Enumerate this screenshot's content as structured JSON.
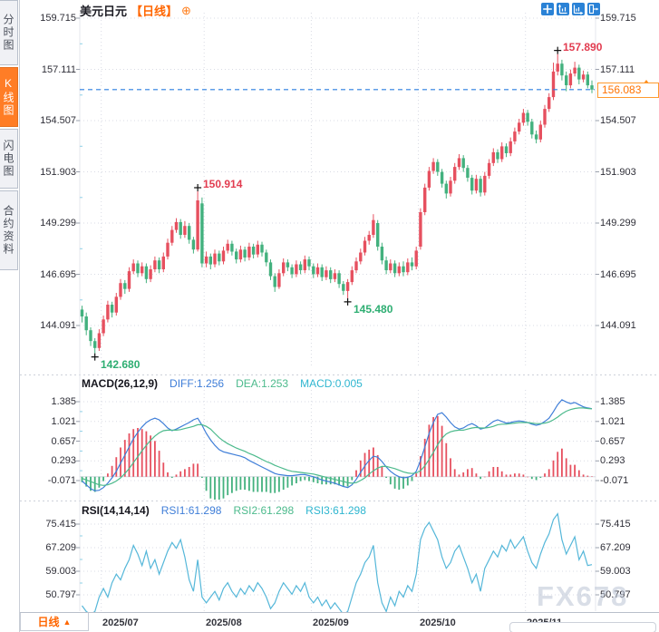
{
  "header": {
    "symbol": "美元日元",
    "period_tag": "【日线】",
    "plus_icon": "⊕"
  },
  "sidebar": {
    "tabs": [
      {
        "label": "分时图",
        "active": false
      },
      {
        "label": "K线图",
        "active": true
      },
      {
        "label": "闪电图",
        "active": false
      },
      {
        "label": "合约资料",
        "active": false
      }
    ]
  },
  "toolbar": {
    "buttons": [
      "move",
      "scale-vertical",
      "scale-horizontal",
      "exit"
    ]
  },
  "footer": {
    "period_label": "日线",
    "arrow": "▲"
  },
  "watermark": "FX678",
  "colors": {
    "up": "#e6505f",
    "down": "#43b17e",
    "diff_line": "#3f7ed8",
    "dea_line": "#4cba8c",
    "rsi_line": "#55b7d9",
    "dashed_price": "#2a7ee0",
    "accent_orange": "#ff6600",
    "toolbar_blue": "#2a82d6",
    "anno_red": "#e23c50",
    "anno_green": "#2eae72"
  },
  "chart_data": [
    {
      "type": "candlestick",
      "title": "美元日元【日线】",
      "y_ticks": [
        159.715,
        157.111,
        154.507,
        151.903,
        149.299,
        146.695,
        144.091
      ],
      "ylim": [
        142.0,
        160.0
      ],
      "current_price_label": "156.083",
      "current_price": 156.083,
      "months": [
        {
          "label": "2025/07",
          "idx": 5
        },
        {
          "label": "2025/08",
          "idx": 29
        },
        {
          "label": "2025/09",
          "idx": 54
        },
        {
          "label": "2025/10",
          "idx": 79
        },
        {
          "label": "2025/11",
          "idx": 104
        }
      ],
      "annotations": [
        {
          "text": "157.890",
          "value": 157.89,
          "idx": 111,
          "type": "high",
          "color": "#e23c50"
        },
        {
          "text": "150.914",
          "value": 150.914,
          "idx": 27,
          "type": "high",
          "color": "#e23c50"
        },
        {
          "text": "145.480",
          "value": 145.48,
          "idx": 62,
          "type": "low",
          "color": "#2eae72"
        },
        {
          "text": "142.680",
          "value": 142.68,
          "idx": 3,
          "type": "low",
          "color": "#2eae72"
        }
      ],
      "candles": [
        [
          144.9,
          145.1,
          144.25,
          144.55
        ],
        [
          144.55,
          144.75,
          143.6,
          143.85
        ],
        [
          143.85,
          144.0,
          143.05,
          143.3
        ],
        [
          143.3,
          143.45,
          142.68,
          142.95
        ],
        [
          142.95,
          143.9,
          142.8,
          143.7
        ],
        [
          143.7,
          144.6,
          143.55,
          144.4
        ],
        [
          144.4,
          145.35,
          144.25,
          145.15
        ],
        [
          145.15,
          145.3,
          144.5,
          144.75
        ],
        [
          144.75,
          145.75,
          144.6,
          145.55
        ],
        [
          145.55,
          146.45,
          145.4,
          146.25
        ],
        [
          146.25,
          146.4,
          145.7,
          145.95
        ],
        [
          145.95,
          147.05,
          145.8,
          146.85
        ],
        [
          146.85,
          147.45,
          146.7,
          147.25
        ],
        [
          147.25,
          147.4,
          146.55,
          146.75
        ],
        [
          146.75,
          147.3,
          146.6,
          147.1
        ],
        [
          147.1,
          147.25,
          146.25,
          146.45
        ],
        [
          146.45,
          147.15,
          146.3,
          146.95
        ],
        [
          146.95,
          147.6,
          146.8,
          147.4
        ],
        [
          147.4,
          147.55,
          146.75,
          146.95
        ],
        [
          146.95,
          147.8,
          146.8,
          147.6
        ],
        [
          147.6,
          148.5,
          147.45,
          148.3
        ],
        [
          148.3,
          149.15,
          148.15,
          148.95
        ],
        [
          148.95,
          149.55,
          148.8,
          149.35
        ],
        [
          149.35,
          149.5,
          148.5,
          148.7
        ],
        [
          148.7,
          149.4,
          148.55,
          149.15
        ],
        [
          149.15,
          149.3,
          148.25,
          148.45
        ],
        [
          148.45,
          148.6,
          147.75,
          147.95
        ],
        [
          147.95,
          150.914,
          147.85,
          150.45
        ],
        [
          150.3,
          150.6,
          147.05,
          147.25
        ],
        [
          147.25,
          147.85,
          147.05,
          147.6
        ],
        [
          147.6,
          147.75,
          146.95,
          147.2
        ],
        [
          147.2,
          147.95,
          147.05,
          147.75
        ],
        [
          147.75,
          147.9,
          147.15,
          147.35
        ],
        [
          147.35,
          148.1,
          147.2,
          147.9
        ],
        [
          147.9,
          148.45,
          147.75,
          148.25
        ],
        [
          148.25,
          148.4,
          147.65,
          147.85
        ],
        [
          147.85,
          148.0,
          147.25,
          147.45
        ],
        [
          147.45,
          148.15,
          147.3,
          147.95
        ],
        [
          147.95,
          148.1,
          147.35,
          147.55
        ],
        [
          147.55,
          148.3,
          147.4,
          148.1
        ],
        [
          148.1,
          148.25,
          147.5,
          147.7
        ],
        [
          147.7,
          148.4,
          147.55,
          148.2
        ],
        [
          148.2,
          148.35,
          147.6,
          147.8
        ],
        [
          147.8,
          147.95,
          147.1,
          147.3
        ],
        [
          147.3,
          147.45,
          146.4,
          146.6
        ],
        [
          146.6,
          146.75,
          145.8,
          146.05
        ],
        [
          146.05,
          146.95,
          145.95,
          146.75
        ],
        [
          146.75,
          147.5,
          146.6,
          147.3
        ],
        [
          147.3,
          147.45,
          146.85,
          147.05
        ],
        [
          147.05,
          147.2,
          146.5,
          146.7
        ],
        [
          146.7,
          147.4,
          146.55,
          147.2
        ],
        [
          147.2,
          147.35,
          146.7,
          146.9
        ],
        [
          146.9,
          147.65,
          146.75,
          147.45
        ],
        [
          147.45,
          147.6,
          146.9,
          147.1
        ],
        [
          147.1,
          147.25,
          146.5,
          146.7
        ],
        [
          146.7,
          147.25,
          146.55,
          147.05
        ],
        [
          147.05,
          147.2,
          146.35,
          146.55
        ],
        [
          146.55,
          147.1,
          146.4,
          146.9
        ],
        [
          146.9,
          147.05,
          146.25,
          146.45
        ],
        [
          146.45,
          146.95,
          146.3,
          146.75
        ],
        [
          146.75,
          146.9,
          146.0,
          146.2
        ],
        [
          146.2,
          146.35,
          145.65,
          145.85
        ],
        [
          145.85,
          146.45,
          145.48,
          146.3
        ],
        [
          146.3,
          147.1,
          146.15,
          146.9
        ],
        [
          146.9,
          147.55,
          146.75,
          147.35
        ],
        [
          147.35,
          148.0,
          147.2,
          147.8
        ],
        [
          147.8,
          148.6,
          147.65,
          148.4
        ],
        [
          148.4,
          148.9,
          148.2,
          148.7
        ],
        [
          148.7,
          149.75,
          148.55,
          149.45
        ],
        [
          149.3,
          149.45,
          147.9,
          148.1
        ],
        [
          148.1,
          148.3,
          147.2,
          147.4
        ],
        [
          147.4,
          147.6,
          146.7,
          146.9
        ],
        [
          146.9,
          147.45,
          146.75,
          147.25
        ],
        [
          147.25,
          147.4,
          146.55,
          146.75
        ],
        [
          146.75,
          147.3,
          146.6,
          147.1
        ],
        [
          147.1,
          147.35,
          146.6,
          146.8
        ],
        [
          146.8,
          147.5,
          146.65,
          147.3
        ],
        [
          147.3,
          147.55,
          146.9,
          147.1
        ],
        [
          147.1,
          148.1,
          146.95,
          147.9
        ],
        [
          148.1,
          150.05,
          147.95,
          149.85
        ],
        [
          149.85,
          151.3,
          149.7,
          151.1
        ],
        [
          151.1,
          152.15,
          150.95,
          151.95
        ],
        [
          151.95,
          152.6,
          151.8,
          152.4
        ],
        [
          152.4,
          152.55,
          151.7,
          151.9
        ],
        [
          151.9,
          152.05,
          151.1,
          151.3
        ],
        [
          151.3,
          151.45,
          150.55,
          150.8
        ],
        [
          150.8,
          151.65,
          150.65,
          151.45
        ],
        [
          151.45,
          152.35,
          151.3,
          152.15
        ],
        [
          152.15,
          152.8,
          152.0,
          152.6
        ],
        [
          152.6,
          152.75,
          151.9,
          152.1
        ],
        [
          152.1,
          152.25,
          151.4,
          151.6
        ],
        [
          151.6,
          151.75,
          150.75,
          150.95
        ],
        [
          150.95,
          151.75,
          150.8,
          151.55
        ],
        [
          151.55,
          151.7,
          150.65,
          150.85
        ],
        [
          150.85,
          151.9,
          150.7,
          151.7
        ],
        [
          151.7,
          152.55,
          151.55,
          152.35
        ],
        [
          152.35,
          153.1,
          152.2,
          152.9
        ],
        [
          152.9,
          153.05,
          152.35,
          152.55
        ],
        [
          152.55,
          153.4,
          152.4,
          153.2
        ],
        [
          153.2,
          153.35,
          152.65,
          152.85
        ],
        [
          152.85,
          153.65,
          152.7,
          153.45
        ],
        [
          153.45,
          154.15,
          153.3,
          153.95
        ],
        [
          153.95,
          154.6,
          153.8,
          154.4
        ],
        [
          154.4,
          155.1,
          154.25,
          154.9
        ],
        [
          154.9,
          155.05,
          154.25,
          154.45
        ],
        [
          154.45,
          154.6,
          153.6,
          153.8
        ],
        [
          153.8,
          154.0,
          153.35,
          153.55
        ],
        [
          153.55,
          154.5,
          153.4,
          154.3
        ],
        [
          154.3,
          155.3,
          154.15,
          155.1
        ],
        [
          155.1,
          155.9,
          154.95,
          155.7
        ],
        [
          155.7,
          157.45,
          155.55,
          157.0
        ],
        [
          157.0,
          157.89,
          156.8,
          157.4
        ],
        [
          157.4,
          157.6,
          156.55,
          156.8
        ],
        [
          156.8,
          157.0,
          156.0,
          156.3
        ],
        [
          156.3,
          157.1,
          156.15,
          156.9
        ],
        [
          156.9,
          157.5,
          156.75,
          157.2
        ],
        [
          157.2,
          157.35,
          156.35,
          156.6
        ],
        [
          156.6,
          157.05,
          156.45,
          156.85
        ],
        [
          156.85,
          157.0,
          156.15,
          156.3
        ],
        [
          156.3,
          156.55,
          155.9,
          156.083
        ]
      ]
    },
    {
      "type": "macd",
      "params": "MACD(26,12,9)",
      "labels": {
        "diff": "DIFF:1.256",
        "dea": "DEA:1.253",
        "macd": "MACD:0.005"
      },
      "y_ticks": [
        1.385,
        1.021,
        0.657,
        0.293,
        -0.071
      ],
      "diff": [
        -0.08,
        -0.15,
        -0.22,
        -0.26,
        -0.25,
        -0.2,
        -0.12,
        -0.02,
        0.1,
        0.25,
        0.4,
        0.55,
        0.7,
        0.82,
        0.92,
        1.0,
        1.05,
        1.08,
        1.05,
        0.98,
        0.9,
        0.85,
        0.88,
        0.92,
        0.96,
        1.0,
        1.05,
        1.08,
        0.95,
        0.8,
        0.68,
        0.58,
        0.5,
        0.46,
        0.44,
        0.42,
        0.4,
        0.38,
        0.35,
        0.3,
        0.26,
        0.22,
        0.18,
        0.14,
        0.1,
        0.06,
        0.04,
        0.03,
        0.02,
        0.02,
        0.03,
        0.04,
        0.04,
        0.02,
        0.0,
        -0.03,
        -0.06,
        -0.08,
        -0.1,
        -0.12,
        -0.15,
        -0.18,
        -0.2,
        -0.15,
        -0.05,
        0.08,
        0.2,
        0.3,
        0.38,
        0.36,
        0.28,
        0.18,
        0.1,
        0.04,
        0.0,
        -0.02,
        -0.01,
        0.02,
        0.1,
        0.3,
        0.55,
        0.8,
        1.0,
        1.15,
        1.18,
        1.1,
        1.0,
        0.92,
        0.88,
        0.9,
        0.95,
        0.98,
        0.94,
        0.88,
        0.9,
        0.96,
        1.02,
        1.05,
        1.02,
        0.99,
        1.0,
        1.02,
        1.03,
        1.02,
        1.0,
        0.97,
        0.95,
        0.97,
        1.02,
        1.08,
        1.2,
        1.33,
        1.42,
        1.38,
        1.35,
        1.37,
        1.33,
        1.29,
        1.27,
        1.256
      ],
      "dea": [
        -0.03,
        -0.06,
        -0.09,
        -0.12,
        -0.15,
        -0.16,
        -0.15,
        -0.12,
        -0.08,
        -0.02,
        0.06,
        0.15,
        0.26,
        0.37,
        0.48,
        0.58,
        0.67,
        0.75,
        0.81,
        0.85,
        0.86,
        0.86,
        0.86,
        0.87,
        0.89,
        0.91,
        0.93,
        0.96,
        0.96,
        0.93,
        0.88,
        0.8,
        0.72,
        0.66,
        0.61,
        0.57,
        0.53,
        0.5,
        0.47,
        0.43,
        0.4,
        0.36,
        0.32,
        0.28,
        0.25,
        0.21,
        0.18,
        0.15,
        0.12,
        0.1,
        0.09,
        0.08,
        0.07,
        0.06,
        0.05,
        0.03,
        0.01,
        -0.01,
        -0.03,
        -0.05,
        -0.07,
        -0.09,
        -0.11,
        -0.12,
        -0.11,
        -0.07,
        -0.02,
        0.05,
        0.11,
        0.16,
        0.19,
        0.19,
        0.17,
        0.15,
        0.12,
        0.09,
        0.07,
        0.06,
        0.07,
        0.11,
        0.2,
        0.32,
        0.45,
        0.59,
        0.71,
        0.79,
        0.83,
        0.85,
        0.86,
        0.86,
        0.88,
        0.9,
        0.91,
        0.9,
        0.9,
        0.91,
        0.93,
        0.96,
        0.97,
        0.97,
        0.98,
        0.99,
        1.0,
        1.0,
        1.0,
        0.99,
        0.98,
        0.98,
        0.99,
        1.01,
        1.05,
        1.1,
        1.16,
        1.21,
        1.24,
        1.26,
        1.27,
        1.27,
        1.26,
        1.253
      ]
    },
    {
      "type": "rsi",
      "params": "RSI(14,14,14)",
      "labels": {
        "rsi1": "RSI1:61.298",
        "rsi2": "RSI2:61.298",
        "rsi3": "RSI3:61.298"
      },
      "y_ticks": [
        75.415,
        67.209,
        59.003,
        50.797
      ],
      "rsi": [
        47,
        45,
        44,
        45,
        50,
        53,
        50,
        55,
        58,
        56,
        60,
        63,
        68,
        65,
        61,
        66,
        60,
        63,
        58,
        62,
        66,
        69,
        67,
        70,
        64,
        56,
        52,
        63,
        50,
        48,
        50,
        52,
        49,
        53,
        55,
        52,
        50,
        53,
        51,
        54,
        52,
        55,
        53,
        50,
        46,
        48,
        52,
        55,
        53,
        51,
        54,
        52,
        55,
        50,
        48,
        50,
        47,
        49,
        46,
        48,
        46,
        44,
        45,
        50,
        55,
        58,
        62,
        64,
        68,
        55,
        48,
        45,
        50,
        47,
        52,
        50,
        54,
        52,
        58,
        70,
        74,
        76,
        73,
        70,
        64,
        60,
        62,
        66,
        68,
        64,
        60,
        55,
        58,
        52,
        60,
        63,
        66,
        64,
        68,
        66,
        70,
        67,
        69,
        71,
        66,
        62,
        60,
        65,
        69,
        72,
        77,
        79,
        70,
        65,
        68,
        71,
        63,
        66,
        61,
        61.3
      ]
    }
  ]
}
